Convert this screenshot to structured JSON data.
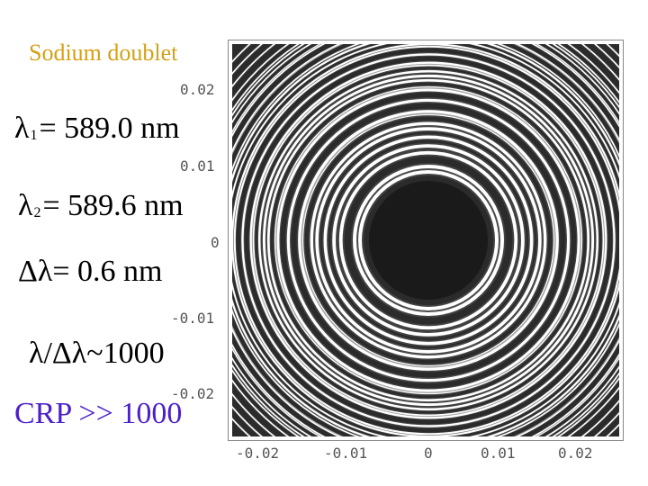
{
  "labels": {
    "title": "Sodium doublet",
    "lambda1_sym": "λ",
    "lambda1_sub": "1",
    "lambda1_rest": "= 589.0 nm",
    "lambda2_sym": "λ",
    "lambda2_sub": "2",
    "lambda2_rest": "= 589.6 nm",
    "delta": "Δλ= 0.6 nm",
    "ratio": "λ/Δλ~1000",
    "crp": "CRP >> 1000"
  },
  "axis": {
    "y_ticks": [
      "0.02",
      "0.01",
      "0",
      "-0.01",
      "-0.02"
    ],
    "x_ticks": [
      "-0.02",
      "-0.01",
      "0",
      "0.01",
      "0.02"
    ],
    "range": [
      -0.025,
      0.025
    ]
  },
  "colors": {
    "title": "#d4a017",
    "crp": "#4b1fc9",
    "fringe_bright": "#ffffff",
    "fringe_dark": "#1a1a1a"
  }
}
